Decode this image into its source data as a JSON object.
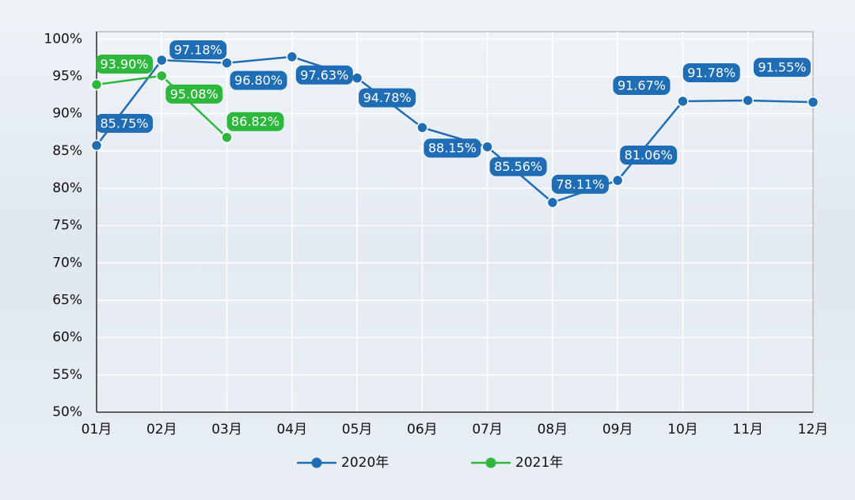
{
  "chart_data": {
    "type": "line",
    "categories": [
      "01月",
      "02月",
      "03月",
      "04月",
      "05月",
      "06月",
      "07月",
      "08月",
      "09月",
      "10月",
      "11月",
      "12月"
    ],
    "series": [
      {
        "name": "2020年",
        "color": "#1f6db5",
        "values": [
          85.75,
          97.18,
          96.8,
          97.63,
          94.78,
          88.15,
          85.56,
          78.11,
          81.06,
          91.67,
          91.78,
          91.55
        ],
        "value_labels": [
          "85.75%",
          "97.18%",
          "96.80%",
          "97.63%",
          "94.78%",
          "88.15%",
          "85.56%",
          "78.11%",
          "81.06%",
          "91.67%",
          "91.78%",
          "91.55%"
        ]
      },
      {
        "name": "2021年",
        "color": "#2db83d",
        "values": [
          93.9,
          95.08,
          86.82,
          null,
          null,
          null,
          null,
          null,
          null,
          null,
          null,
          null
        ],
        "value_labels": [
          "93.90%",
          "95.08%",
          "86.82%",
          null,
          null,
          null,
          null,
          null,
          null,
          null,
          null,
          null
        ]
      }
    ],
    "ylim": [
      50,
      101
    ],
    "yticks": [
      {
        "value": 50,
        "label": "50%"
      },
      {
        "value": 55,
        "label": "55%"
      },
      {
        "value": 60,
        "label": "60%"
      },
      {
        "value": 65,
        "label": "65%"
      },
      {
        "value": 70,
        "label": "70%"
      },
      {
        "value": 75,
        "label": "75%"
      },
      {
        "value": 80,
        "label": "80%"
      },
      {
        "value": 85,
        "label": "85%"
      },
      {
        "value": 90,
        "label": "90%"
      },
      {
        "value": 95,
        "label": "95%"
      },
      {
        "value": 100,
        "label": "100%"
      }
    ],
    "grid": true,
    "legend": "bottom"
  }
}
